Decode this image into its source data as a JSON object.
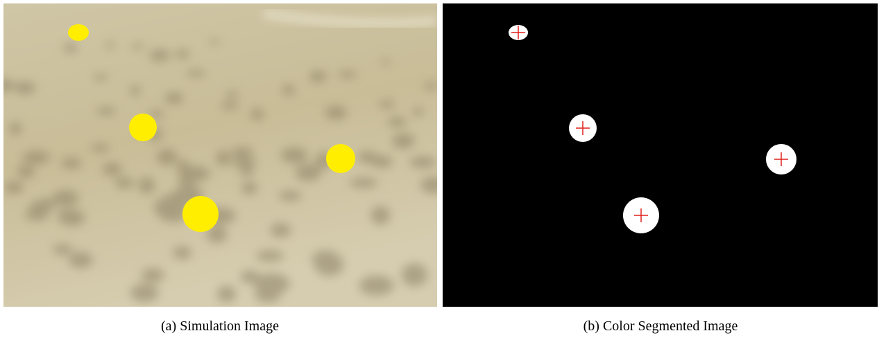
{
  "figure": {
    "subfigures": [
      {
        "caption": "(a) Simulation Image"
      },
      {
        "caption": "(b) Color Segmented Image"
      }
    ]
  }
}
